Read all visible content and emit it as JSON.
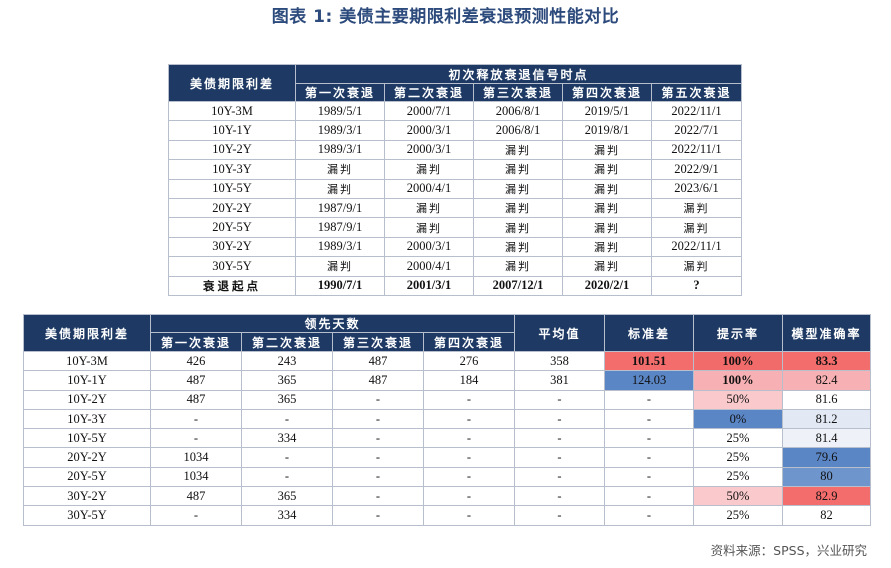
{
  "title": "图表 1:  美债主要期限利差衰退预测性能对比",
  "table1": {
    "row_header": "美债期限利差",
    "group_header": "初次释放衰退信号时点",
    "columns": [
      "第一次衰退",
      "第二次衰退",
      "第三次衰退",
      "第四次衰退",
      "第五次衰退"
    ],
    "rows": [
      {
        "label": "10Y-3M",
        "cells": [
          "1989/5/1",
          "2000/7/1",
          "2006/8/1",
          "2019/5/1",
          "2022/11/1"
        ]
      },
      {
        "label": "10Y-1Y",
        "cells": [
          "1989/3/1",
          "2000/3/1",
          "2006/8/1",
          "2019/8/1",
          "2022/7/1"
        ]
      },
      {
        "label": "10Y-2Y",
        "cells": [
          "1989/3/1",
          "2000/3/1",
          "漏判",
          "漏判",
          "2022/11/1"
        ]
      },
      {
        "label": "10Y-3Y",
        "cells": [
          "漏判",
          "漏判",
          "漏判",
          "漏判",
          "2022/9/1"
        ]
      },
      {
        "label": "10Y-5Y",
        "cells": [
          "漏判",
          "2000/4/1",
          "漏判",
          "漏判",
          "2023/6/1"
        ]
      },
      {
        "label": "20Y-2Y",
        "cells": [
          "1987/9/1",
          "漏判",
          "漏判",
          "漏判",
          "漏判"
        ]
      },
      {
        "label": "20Y-5Y",
        "cells": [
          "1987/9/1",
          "漏判",
          "漏判",
          "漏判",
          "漏判"
        ]
      },
      {
        "label": "30Y-2Y",
        "cells": [
          "1989/3/1",
          "2000/3/1",
          "漏判",
          "漏判",
          "2022/11/1"
        ]
      },
      {
        "label": "30Y-5Y",
        "cells": [
          "漏判",
          "2000/4/1",
          "漏判",
          "漏判",
          "漏判"
        ]
      }
    ],
    "footer": {
      "label": "衰退起点",
      "cells": [
        "1990/7/1",
        "2001/3/1",
        "2007/12/1",
        "2020/2/1",
        "?"
      ]
    }
  },
  "table2": {
    "row_header": "美债期限利差",
    "group_header": "领先天数",
    "columns": [
      "第一次衰退",
      "第二次衰退",
      "第三次衰退",
      "第四次衰退"
    ],
    "extra_headers": [
      "平均值",
      "标准差",
      "提示率",
      "模型准确率"
    ],
    "rows": [
      {
        "label": "10Y-3M",
        "lead": [
          "426",
          "243",
          "487",
          "276"
        ],
        "avg": "358",
        "std": "101.51",
        "rate": "100%",
        "acc": "83.3"
      },
      {
        "label": "10Y-1Y",
        "lead": [
          "487",
          "365",
          "487",
          "184"
        ],
        "avg": "381",
        "std": "124.03",
        "rate": "100%",
        "acc": "82.4"
      },
      {
        "label": "10Y-2Y",
        "lead": [
          "487",
          "365",
          "-",
          "-"
        ],
        "avg": "-",
        "std": "-",
        "rate": "50%",
        "acc": "81.6"
      },
      {
        "label": "10Y-3Y",
        "lead": [
          "-",
          "-",
          "-",
          "-"
        ],
        "avg": "-",
        "std": "-",
        "rate": "0%",
        "acc": "81.2"
      },
      {
        "label": "10Y-5Y",
        "lead": [
          "-",
          "334",
          "-",
          "-"
        ],
        "avg": "-",
        "std": "-",
        "rate": "25%",
        "acc": "81.4"
      },
      {
        "label": "20Y-2Y",
        "lead": [
          "1034",
          "-",
          "-",
          "-"
        ],
        "avg": "-",
        "std": "-",
        "rate": "25%",
        "acc": "79.6"
      },
      {
        "label": "20Y-5Y",
        "lead": [
          "1034",
          "-",
          "-",
          "-"
        ],
        "avg": "-",
        "std": "-",
        "rate": "25%",
        "acc": "80"
      },
      {
        "label": "30Y-2Y",
        "lead": [
          "487",
          "365",
          "-",
          "-"
        ],
        "avg": "-",
        "std": "-",
        "rate": "50%",
        "acc": "82.9"
      },
      {
        "label": "30Y-5Y",
        "lead": [
          "-",
          "334",
          "-",
          "-"
        ],
        "avg": "-",
        "std": "-",
        "rate": "25%",
        "acc": "82"
      }
    ],
    "colors": {
      "std": [
        "#f46d6d",
        "#5b86c6",
        "",
        "",
        "",
        "",
        "",
        "",
        ""
      ],
      "rate": [
        "#f26b6b",
        "#f7b0b3",
        "#f9c9cc",
        "#5b86c6",
        "#ffffff",
        "#ffffff",
        "#ffffff",
        "#f9c9cc",
        "#ffffff"
      ],
      "acc": [
        "#f46d6d",
        "#f7b0b3",
        "#ffffff",
        "#e2e9f4",
        "#eef2f8",
        "#5b86c6",
        "#6f95cd",
        "#f46d6d",
        "#ffffff"
      ],
      "bold_rate": [
        true,
        true,
        false,
        false,
        false,
        false,
        false,
        false,
        false
      ],
      "bold_acc": [
        true,
        false,
        false,
        false,
        false,
        false,
        false,
        false,
        false
      ],
      "bold_std": [
        true,
        false,
        false,
        false,
        false,
        false,
        false,
        false,
        false
      ]
    }
  },
  "source": "资料来源：SPSS，兴业研究"
}
